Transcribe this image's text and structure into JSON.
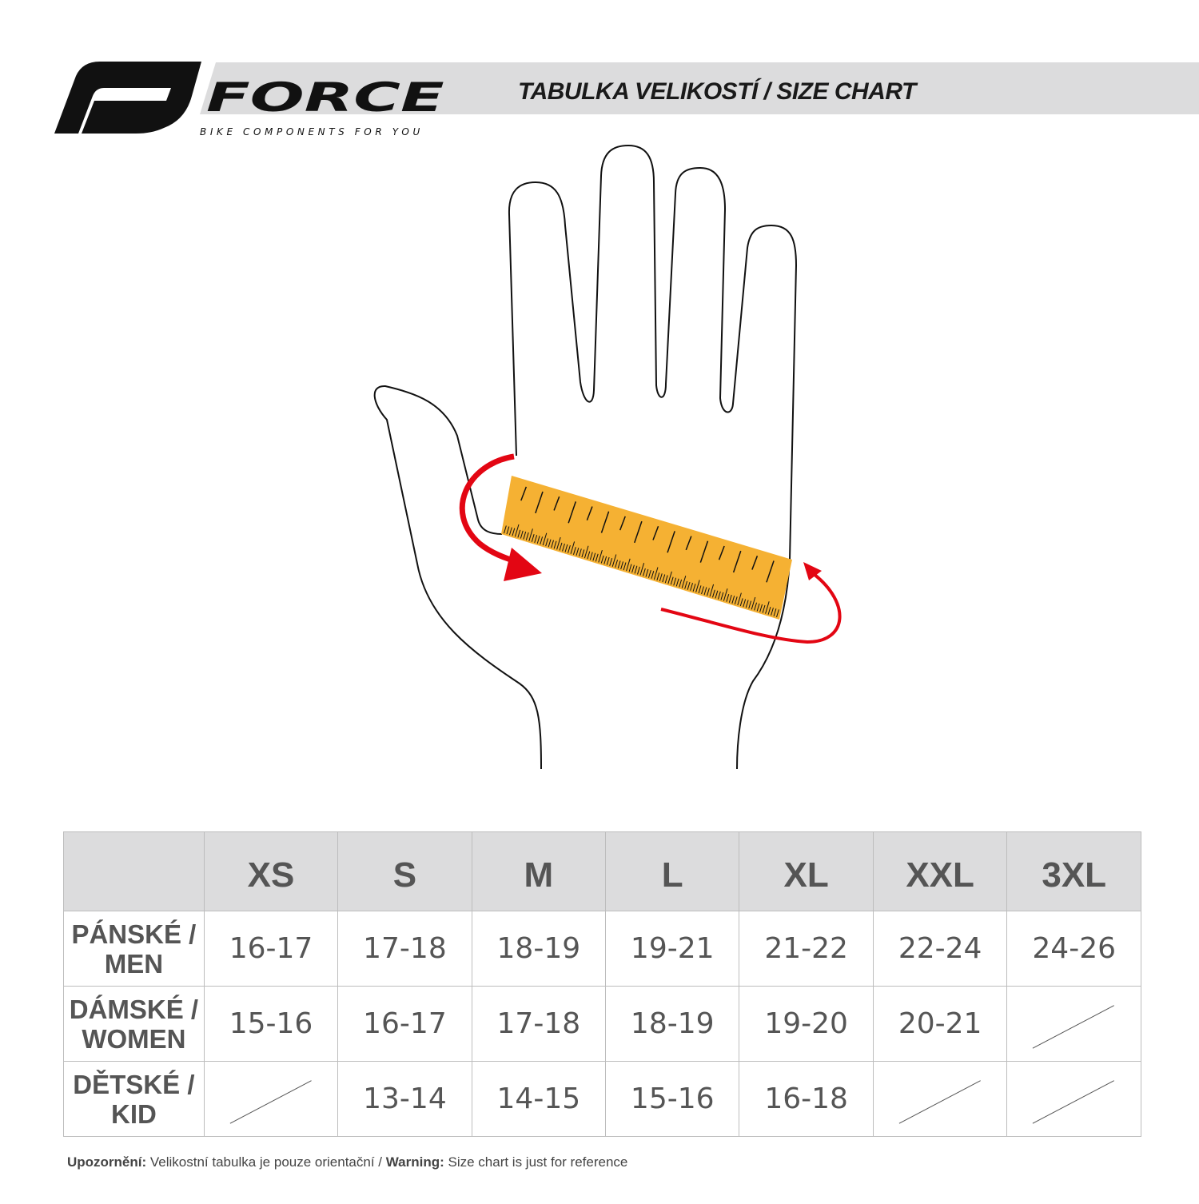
{
  "header": {
    "logo_text": "FORCE",
    "logo_tagline": "BIKE COMPONENTS FOR YOU",
    "title": "TABULKA VELIKOSTÍ / SIZE CHART"
  },
  "colors": {
    "ruler": "#f5b133",
    "arrow": "#e30613",
    "header_bg": "#dcdcdd",
    "text": "#555555"
  },
  "table": {
    "sizes": [
      "XS",
      "S",
      "M",
      "L",
      "XL",
      "XXL",
      "3XL"
    ],
    "rows": [
      {
        "label_line1": "PÁNSKÉ /",
        "label_line2": "MEN",
        "values": [
          "16-17",
          "17-18",
          "18-19",
          "19-21",
          "21-22",
          "22-24",
          "24-26"
        ]
      },
      {
        "label_line1": "DÁMSKÉ /",
        "label_line2": "WOMEN",
        "values": [
          "15-16",
          "16-17",
          "17-18",
          "18-19",
          "19-20",
          "20-21",
          null
        ]
      },
      {
        "label_line1": "DĚTSKÉ /",
        "label_line2": "KID",
        "values": [
          null,
          "13-14",
          "14-15",
          "15-16",
          "16-18",
          null,
          null
        ]
      }
    ]
  },
  "note": {
    "label_cz": "Upozornění:",
    "text_cz": " Velikostní tabulka je pouze orientační / ",
    "label_en": "Warning:",
    "text_en": " Size chart is just for reference"
  }
}
